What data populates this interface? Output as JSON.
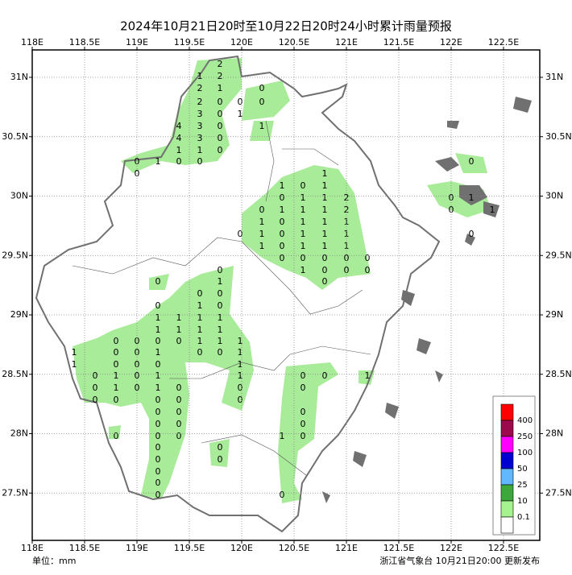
{
  "title": "2024年10月21日20时至10月22日20时24小时累计雨量预报",
  "unit_label": "单位：mm",
  "footer_text": "浙江省气象台 10月21日20:00 更新发布",
  "map": {
    "xticks": [
      {
        "value": 118,
        "label": "118E"
      },
      {
        "value": 118.5,
        "label": "118.5E"
      },
      {
        "value": 119,
        "label": "119E"
      },
      {
        "value": 119.5,
        "label": "119.5E"
      },
      {
        "value": 120,
        "label": "120E"
      },
      {
        "value": 120.5,
        "label": "120.5E"
      },
      {
        "value": 121,
        "label": "121E"
      },
      {
        "value": 121.5,
        "label": "121.5E"
      },
      {
        "value": 122,
        "label": "122E"
      },
      {
        "value": 122.5,
        "label": "122.5E"
      }
    ],
    "yticks": [
      {
        "value": 31,
        "label": "31N"
      },
      {
        "value": 30.5,
        "label": "30.5N"
      },
      {
        "value": 30,
        "label": "30N"
      },
      {
        "value": 29.5,
        "label": "29.5N"
      },
      {
        "value": 29,
        "label": "29N"
      },
      {
        "value": 28.5,
        "label": "28.5N"
      },
      {
        "value": 28,
        "label": "28N"
      },
      {
        "value": 27.5,
        "label": "27.5N"
      }
    ],
    "grid": true,
    "stations": [
      2,
      2,
      1,
      1,
      2,
      0,
      2,
      0,
      0,
      0,
      3,
      0,
      1,
      4,
      3,
      0,
      1,
      4,
      3,
      0,
      1,
      1,
      0,
      0,
      1,
      0,
      0,
      0,
      1,
      1,
      0,
      1,
      0,
      1,
      1,
      2,
      0,
      1,
      1,
      1,
      2,
      1,
      0,
      1,
      1,
      1,
      0,
      1,
      0,
      1,
      1,
      1,
      1,
      0,
      1,
      1,
      1,
      0,
      0,
      0,
      0,
      0,
      1,
      0,
      0,
      0,
      0,
      0,
      0,
      1,
      1,
      0,
      0,
      0,
      0,
      1,
      0,
      0,
      1,
      0,
      0,
      1,
      1,
      1,
      1,
      1,
      1,
      1,
      1,
      0,
      0,
      0,
      0,
      1,
      1,
      1,
      0,
      0,
      1,
      0,
      0,
      1,
      1,
      1,
      0,
      0,
      0,
      1,
      0,
      1,
      0,
      1,
      1,
      0,
      0,
      1,
      0,
      1,
      0,
      1,
      0,
      0,
      0,
      0,
      0,
      0,
      0,
      0,
      0,
      0,
      0,
      0,
      0,
      0,
      0,
      0,
      0,
      1,
      0,
      0,
      0,
      0,
      0,
      0,
      0,
      0,
      0
    ],
    "legend": {
      "colors": [
        "#ff0000",
        "#9c0a4e",
        "#ff00ff",
        "#0000d0",
        "#61b8ff",
        "#3ca83c",
        "#a6f28f",
        "#ffffff"
      ],
      "labels": [
        400,
        250,
        100,
        50,
        25,
        10,
        0.1
      ]
    }
  }
}
